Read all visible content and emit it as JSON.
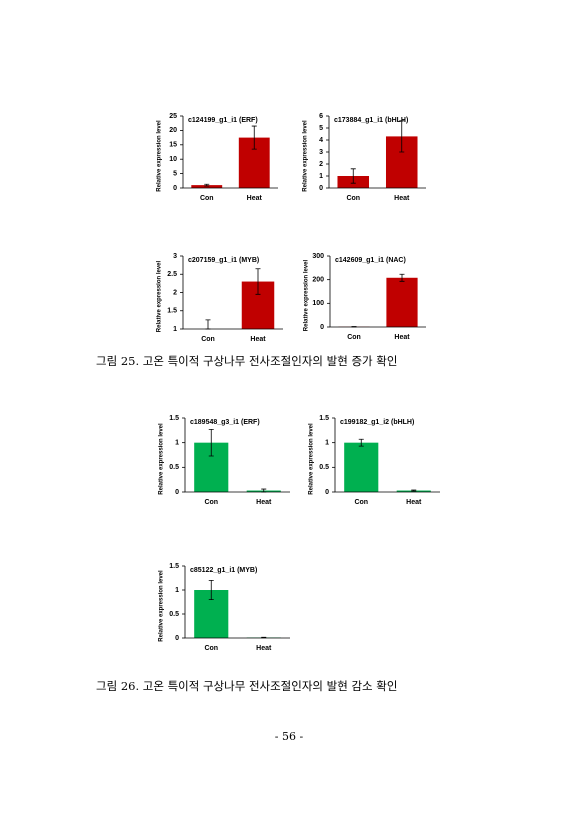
{
  "chart_data": [
    {
      "type": "bar",
      "title": "c124199_g1_i1 (ERF)",
      "ylabel": "Relative expression level",
      "categories": [
        "Con",
        "Heat"
      ],
      "values": [
        1,
        17.5
      ],
      "errors": [
        0.3,
        4
      ],
      "color": "#c00000",
      "ylim": [
        0,
        25
      ],
      "yticks": [
        0,
        5,
        10,
        15,
        20,
        25
      ]
    },
    {
      "type": "bar",
      "title": "c173884_g1_i1 (bHLH)",
      "ylabel": "Relative expression level",
      "categories": [
        "Con",
        "Heat"
      ],
      "values": [
        1,
        4.3
      ],
      "errors": [
        0.6,
        1.3
      ],
      "color": "#c00000",
      "ylim": [
        0,
        6
      ],
      "yticks": [
        0,
        1,
        2,
        3,
        4,
        5,
        6
      ]
    },
    {
      "type": "bar",
      "title": "c207159_g1_i1 (MYB)",
      "ylabel": "Relative expression level",
      "categories": [
        "Con",
        "Heat"
      ],
      "values": [
        1,
        2.3
      ],
      "errors": [
        0.25,
        0.35
      ],
      "color": "#c00000",
      "ylim": [
        1,
        3
      ],
      "yticks": [
        1,
        1.5,
        2,
        2.5,
        3
      ]
    },
    {
      "type": "bar",
      "title": "c142609_g1_i1 (NAC)",
      "ylabel": "Relative expression level",
      "categories": [
        "Con",
        "Heat"
      ],
      "values": [
        1,
        208
      ],
      "errors": [
        1,
        15
      ],
      "color": "#c00000",
      "ylim": [
        0,
        300
      ],
      "yticks": [
        0,
        100,
        200,
        300
      ]
    },
    {
      "type": "bar",
      "title": "c189548_g3_i1 (ERF)",
      "ylabel": "Relative expression level",
      "categories": [
        "Con",
        "Heat"
      ],
      "values": [
        1,
        0.03
      ],
      "errors": [
        0.27,
        0.03
      ],
      "color": "#00b050",
      "ylim": [
        0,
        1.5
      ],
      "yticks": [
        0,
        0.5,
        1,
        1.5
      ]
    },
    {
      "type": "bar",
      "title": "c199182_g1_i2 (bHLH)",
      "ylabel": "Relative expression level",
      "categories": [
        "Con",
        "Heat"
      ],
      "values": [
        1,
        0.03
      ],
      "errors": [
        0.07,
        0.01
      ],
      "color": "#00b050",
      "ylim": [
        0,
        1.5
      ],
      "yticks": [
        0,
        0.5,
        1,
        1.5
      ]
    },
    {
      "type": "bar",
      "title": "c85122_g1_i1 (MYB)",
      "ylabel": "Relative expression level",
      "categories": [
        "Con",
        "Heat"
      ],
      "values": [
        1,
        0.01
      ],
      "errors": [
        0.2,
        0.005
      ],
      "color": "#00b050",
      "ylim": [
        0,
        1.5
      ],
      "yticks": [
        0,
        0.5,
        1,
        1.5
      ]
    }
  ],
  "captions": [
    "그림 25. 고온 특이적 구상나무 전사조절인자의 발현 증가 확인",
    "그림 26. 고온 특이적 구상나무 전사조절인자의 발현 감소 확인"
  ],
  "page_number": "- 56 -"
}
